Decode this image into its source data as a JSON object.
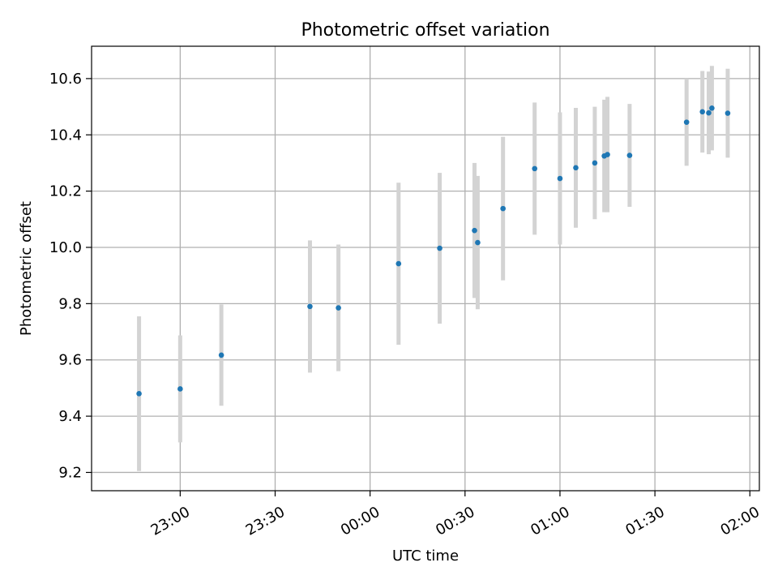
{
  "chart_data": {
    "type": "scatter",
    "title": "Photometric offset variation",
    "xlabel": "UTC time",
    "ylabel": "Photometric offset",
    "grid": true,
    "x_ticks": [
      "23:00",
      "23:30",
      "00:00",
      "00:30",
      "01:00",
      "01:30",
      "02:00"
    ],
    "y_ticks": [
      "9.2",
      "9.4",
      "9.6",
      "9.8",
      "10.0",
      "10.2",
      "10.4",
      "10.6"
    ],
    "xlim": [
      "22:32",
      "02:03"
    ],
    "ylim": [
      9.135,
      10.715
    ],
    "colors": {
      "point": "#1f77b4",
      "errorbar": "#d3d3d3",
      "grid": "#b0b0b0"
    },
    "series": [
      {
        "points": [
          {
            "x": "22:47",
            "y": 9.48,
            "yerr": 0.275
          },
          {
            "x": "23:00",
            "y": 9.497,
            "yerr": 0.19
          },
          {
            "x": "23:13",
            "y": 9.617,
            "yerr": 0.18
          },
          {
            "x": "23:41",
            "y": 9.79,
            "yerr": 0.235
          },
          {
            "x": "23:50",
            "y": 9.785,
            "yerr": 0.225
          },
          {
            "x": "00:09",
            "y": 9.942,
            "yerr": 0.288
          },
          {
            "x": "00:22",
            "y": 9.997,
            "yerr": 0.268
          },
          {
            "x": "00:33",
            "y": 10.06,
            "yerr": 0.24
          },
          {
            "x": "00:34",
            "y": 10.017,
            "yerr": 0.237
          },
          {
            "x": "00:42",
            "y": 10.138,
            "yerr": 0.255
          },
          {
            "x": "00:52",
            "y": 10.28,
            "yerr": 0.235
          },
          {
            "x": "01:00",
            "y": 10.245,
            "yerr": 0.235
          },
          {
            "x": "01:05",
            "y": 10.283,
            "yerr": 0.213
          },
          {
            "x": "01:11",
            "y": 10.3,
            "yerr": 0.2
          },
          {
            "x": "01:14",
            "y": 10.325,
            "yerr": 0.2
          },
          {
            "x": "01:15",
            "y": 10.33,
            "yerr": 0.205
          },
          {
            "x": "01:22",
            "y": 10.327,
            "yerr": 0.183
          },
          {
            "x": "01:40",
            "y": 10.445,
            "yerr": 0.155
          },
          {
            "x": "01:45",
            "y": 10.482,
            "yerr": 0.145
          },
          {
            "x": "01:47",
            "y": 10.478,
            "yerr": 0.147
          },
          {
            "x": "01:48",
            "y": 10.495,
            "yerr": 0.15
          },
          {
            "x": "01:53",
            "y": 10.477,
            "yerr": 0.158
          }
        ]
      }
    ]
  }
}
